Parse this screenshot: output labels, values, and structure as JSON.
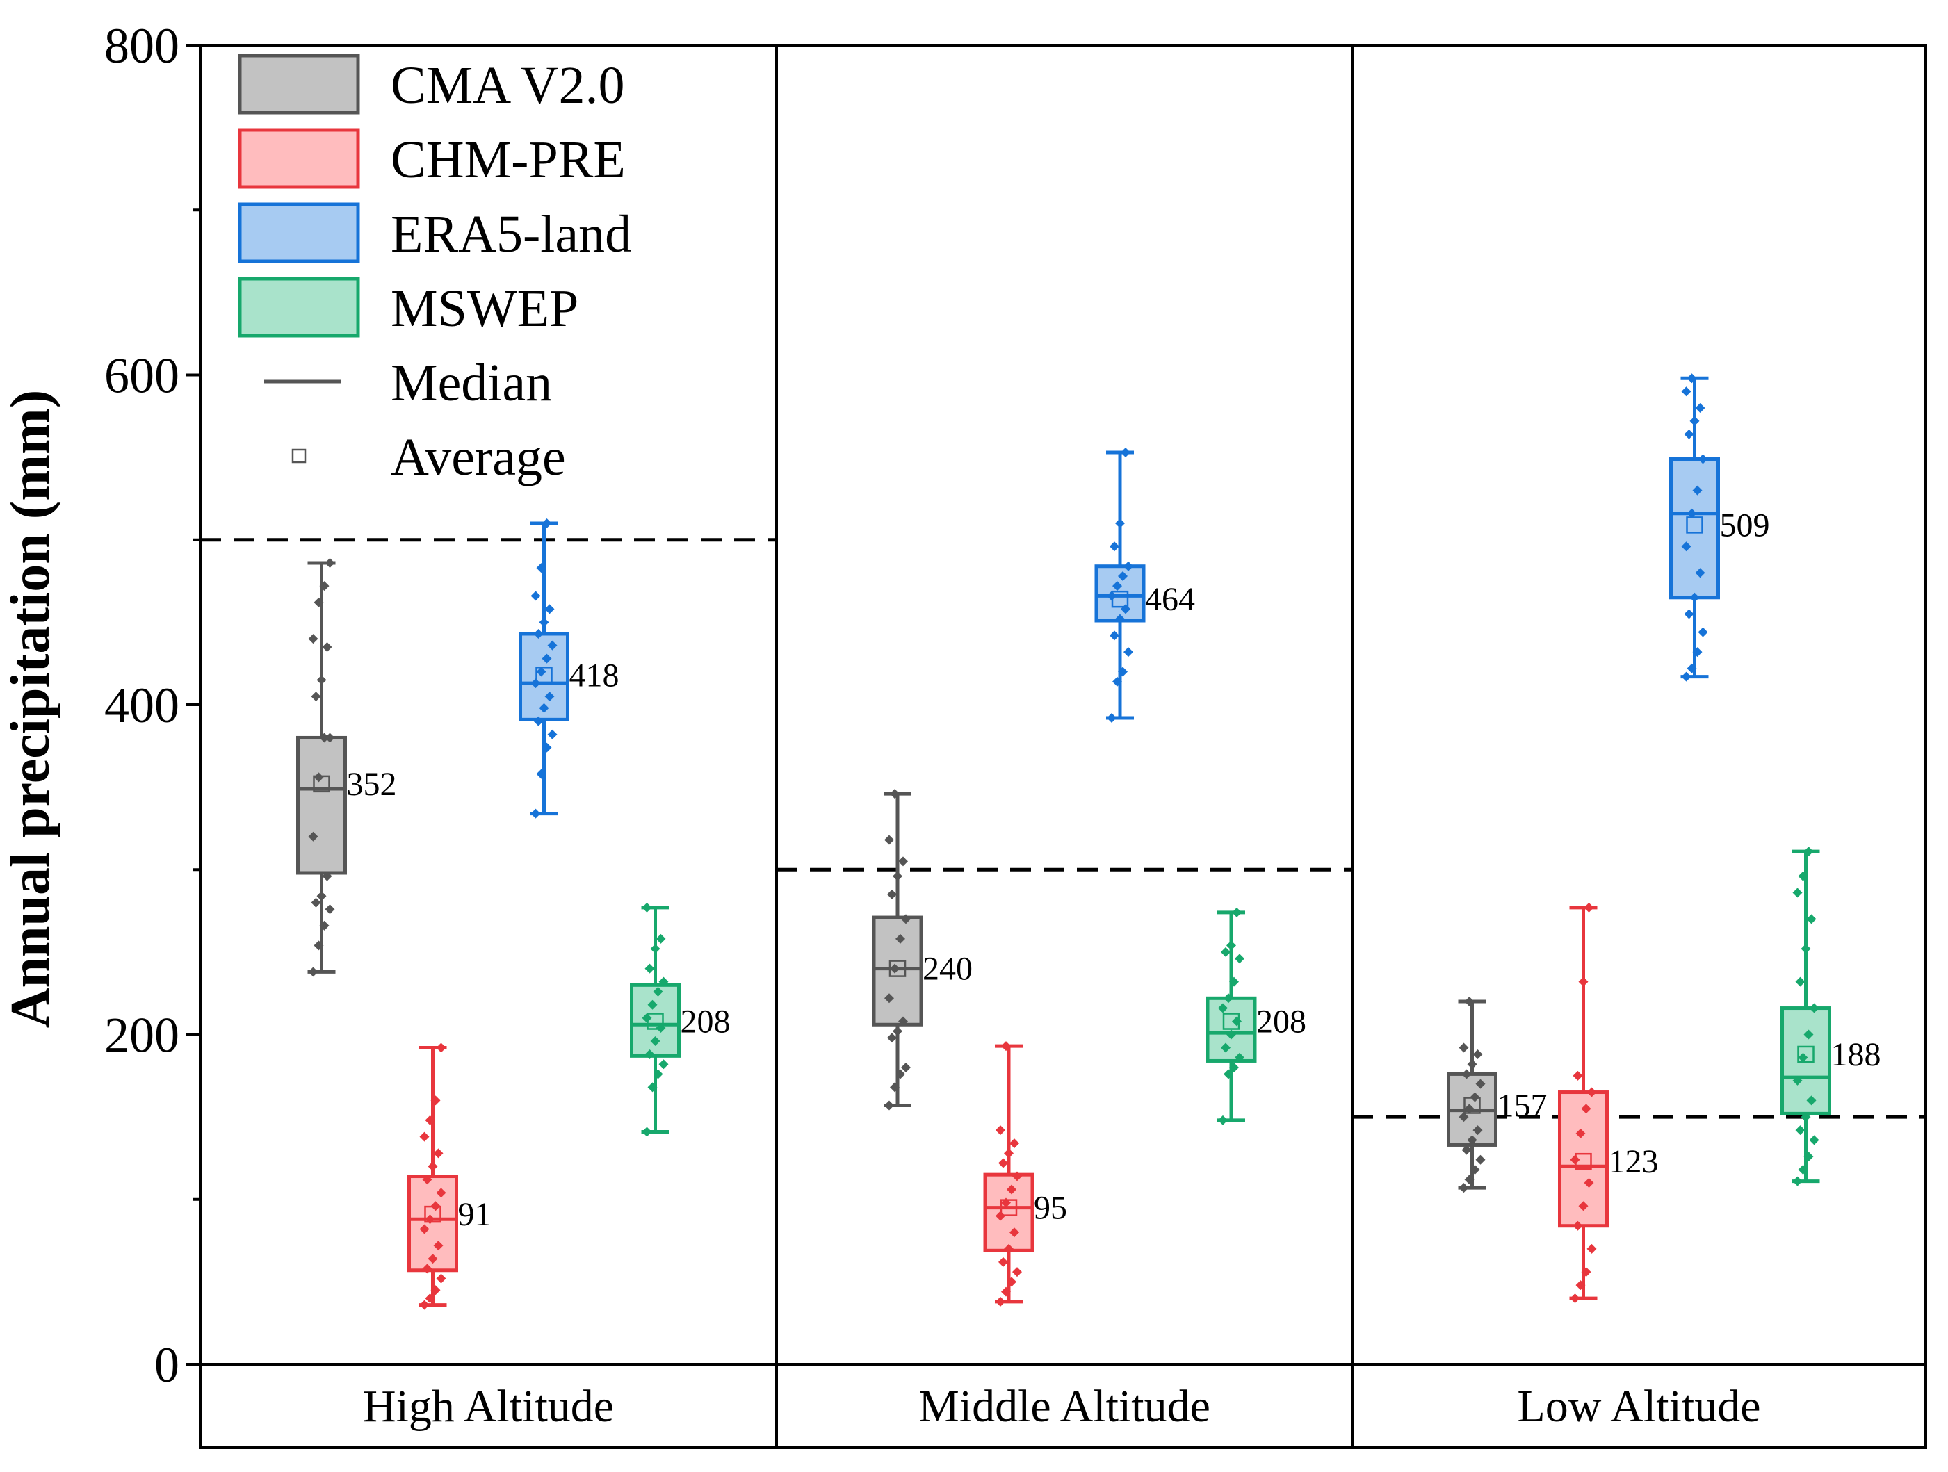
{
  "chart_data": {
    "type": "box",
    "title": "",
    "xlabel": "",
    "ylabel": "Annual precipitation (mm)",
    "ylim": [
      0,
      800
    ],
    "y_ticks": [
      "0",
      "200",
      "400",
      "600",
      "800"
    ],
    "groups": [
      "High Altitude",
      "Middle Altitude",
      "Low Altitude"
    ],
    "reference_lines": [
      500,
      300,
      150
    ],
    "legend_position": "top-left",
    "legend": {
      "median_label": "Median",
      "average_label": "Average"
    },
    "series": [
      {
        "name": "CMA V2.0",
        "color": "#555555",
        "fill": "#c2c2c2",
        "boxes": [
          {
            "min": 238,
            "q1": 298,
            "median": 349,
            "q3": 380,
            "max": 486,
            "mean": 352,
            "mean_label": "352",
            "points": [
              238,
              254,
              266,
              276,
              280,
              284,
              296,
              320,
              356,
              380,
              380,
              405,
              415,
              435,
              440,
              462,
              472,
              486
            ]
          },
          {
            "min": 157,
            "q1": 206,
            "median": 240,
            "q3": 271,
            "max": 346,
            "mean": 240,
            "mean_label": "240",
            "points": [
              157,
              168,
              176,
              180,
              198,
              202,
              208,
              222,
              240,
              258,
              270,
              285,
              296,
              305,
              318,
              346
            ]
          },
          {
            "min": 107,
            "q1": 133,
            "median": 154,
            "q3": 176,
            "max": 220,
            "mean": 157,
            "mean_label": "157",
            "points": [
              107,
              112,
              118,
              124,
              130,
              136,
              142,
              150,
              155,
              162,
              170,
              176,
              182,
              188,
              192,
              220
            ]
          }
        ]
      },
      {
        "name": "CHM-PRE",
        "color": "#e8363d",
        "fill": "#ffbcbe",
        "boxes": [
          {
            "min": 36,
            "q1": 57,
            "median": 88,
            "q3": 114,
            "max": 192,
            "mean": 91,
            "mean_label": "91",
            "points": [
              36,
              40,
              45,
              52,
              58,
              64,
              72,
              82,
              88,
              96,
              104,
              112,
              120,
              128,
              138,
              148,
              160,
              192
            ]
          },
          {
            "min": 38,
            "q1": 69,
            "median": 95,
            "q3": 115,
            "max": 193,
            "mean": 95,
            "mean_label": "95",
            "points": [
              38,
              44,
              50,
              56,
              62,
              70,
              80,
              90,
              98,
              106,
              114,
              122,
              128,
              134,
              142,
              193
            ]
          },
          {
            "min": 40,
            "q1": 84,
            "median": 120,
            "q3": 165,
            "max": 277,
            "mean": 123,
            "mean_label": "123",
            "points": [
              40,
              48,
              56,
              70,
              84,
              96,
              110,
              124,
              140,
              155,
              165,
              175,
              232,
              277
            ]
          }
        ]
      },
      {
        "name": "ERA5-land",
        "color": "#1673d8",
        "fill": "#a7cbf2",
        "boxes": [
          {
            "min": 334,
            "q1": 391,
            "median": 413,
            "q3": 443,
            "max": 510,
            "mean": 418,
            "mean_label": "418",
            "points": [
              334,
              358,
              374,
              382,
              390,
              398,
              405,
              413,
              420,
              428,
              436,
              443,
              450,
              458,
              466,
              483,
              510
            ]
          },
          {
            "min": 392,
            "q1": 451,
            "median": 466,
            "q3": 484,
            "max": 553,
            "mean": 464,
            "mean_label": "464",
            "points": [
              392,
              414,
              420,
              432,
              442,
              452,
              458,
              466,
              472,
              478,
              484,
              496,
              510,
              553
            ]
          },
          {
            "min": 417,
            "q1": 465,
            "median": 516,
            "q3": 549,
            "max": 598,
            "mean": 509,
            "mean_label": "509",
            "points": [
              417,
              422,
              432,
              444,
              455,
              465,
              480,
              496,
              516,
              530,
              549,
              564,
              572,
              580,
              590,
              598
            ]
          }
        ]
      },
      {
        "name": "MSWEP",
        "color": "#17a86c",
        "fill": "#a9e3cb",
        "boxes": [
          {
            "min": 141,
            "q1": 187,
            "median": 206,
            "q3": 230,
            "max": 277,
            "mean": 208,
            "mean_label": "208",
            "points": [
              141,
              168,
              176,
              182,
              188,
              196,
              204,
              210,
              218,
              226,
              232,
              240,
              252,
              258,
              277
            ]
          },
          {
            "min": 148,
            "q1": 184,
            "median": 201,
            "q3": 222,
            "max": 274,
            "mean": 208,
            "mean_label": "208",
            "points": [
              148,
              176,
              180,
              186,
              192,
              200,
              208,
              216,
              222,
              232,
              246,
              250,
              254,
              274
            ]
          },
          {
            "min": 111,
            "q1": 152,
            "median": 174,
            "q3": 216,
            "max": 311,
            "mean": 188,
            "mean_label": "188",
            "points": [
              111,
              118,
              126,
              136,
              142,
              150,
              160,
              172,
              186,
              200,
              216,
              232,
              252,
              270,
              286,
              296,
              311
            ]
          }
        ]
      }
    ]
  }
}
